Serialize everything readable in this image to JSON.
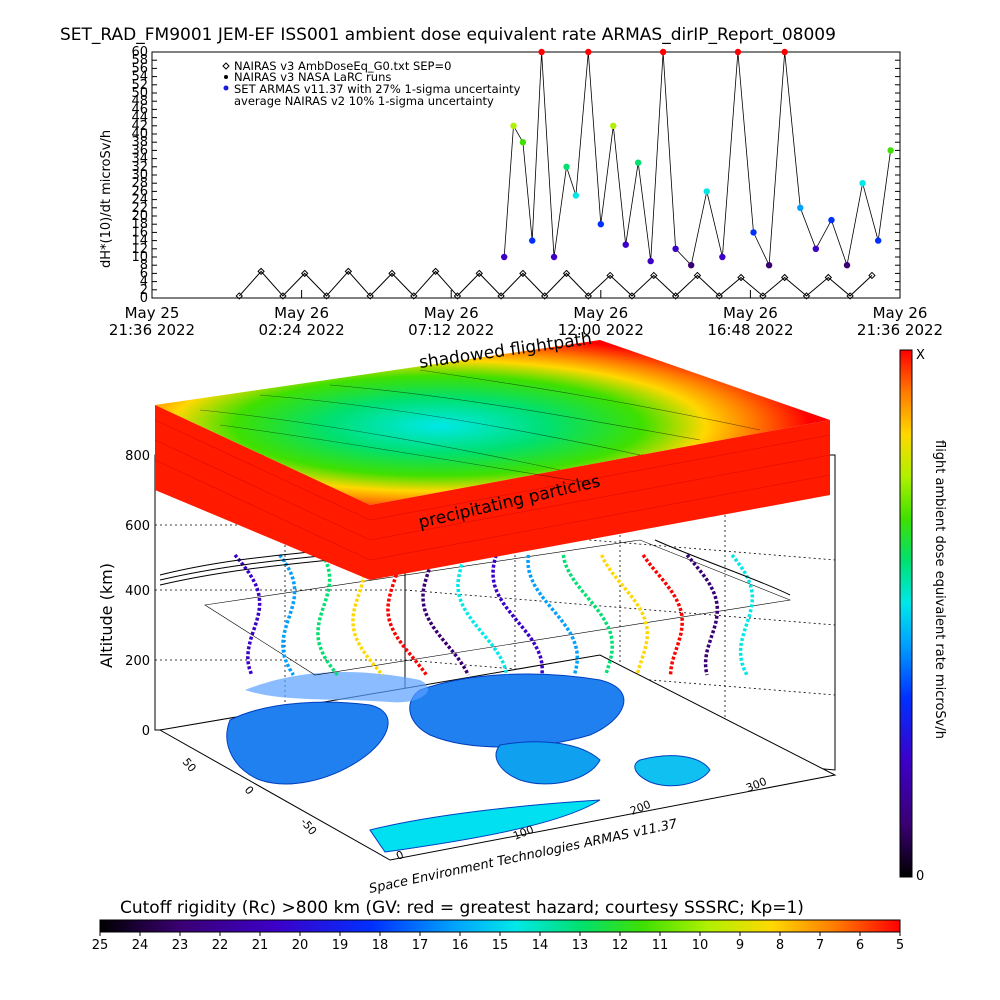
{
  "title": "SET_RAD_FM9001  JEM-EF ISS001 ambient dose equivalent rate ARMAS_dirIP_Report_08009",
  "chart_data": [
    {
      "type": "scatter",
      "ylabel": "dH*(10)/dt microSv/h",
      "ylim": [
        0,
        60
      ],
      "yticks": [
        0,
        2,
        4,
        6,
        8,
        10,
        12,
        14,
        16,
        18,
        20,
        22,
        24,
        26,
        28,
        30,
        32,
        34,
        36,
        38,
        40,
        42,
        44,
        46,
        48,
        50,
        52,
        54,
        56,
        58,
        60
      ],
      "xticks": [
        {
          "line1": "May 25",
          "line2": "21:36 2022"
        },
        {
          "line1": "May 26",
          "line2": "02:24 2022"
        },
        {
          "line1": "May 26",
          "line2": "07:12 2022"
        },
        {
          "line1": "May 26",
          "line2": "12:00 2022"
        },
        {
          "line1": "May 26",
          "line2": "16:48 2022"
        },
        {
          "line1": "May 26",
          "line2": "21:36 2022"
        }
      ],
      "legend": [
        {
          "label": "NAIRAS v3 AmbDoseEq_G0.txt SEP=0",
          "symbol": "diamond",
          "color": "#000000"
        },
        {
          "label": "NAIRAS v3 NASA LaRC runs",
          "symbol": "dot",
          "color": "#000000"
        },
        {
          "label": "SET ARMAS v11.37 with 27% 1-sigma uncertainty",
          "symbol": "dot",
          "color": "#1a1adc"
        },
        {
          "label": "average NAIRAS v2 10% 1-sigma uncertainty",
          "symbol": "none",
          "color": "#000000"
        }
      ],
      "series": [
        {
          "name": "NAIRAS v3 AmbDoseEq_G0.txt SEP=0",
          "x_hours": [
            2.8,
            3.5,
            4.2,
            4.9,
            5.6,
            6.3,
            7.0,
            7.7,
            8.4,
            9.1,
            9.8,
            10.5,
            11.2,
            11.9,
            12.6,
            13.3,
            14.0,
            14.7,
            15.4,
            16.1,
            16.8,
            17.5,
            18.2,
            18.9,
            19.6,
            20.3,
            21.0,
            21.7,
            22.4,
            23.1
          ],
          "values": [
            0.5,
            6.5,
            0.5,
            6,
            0.5,
            6.5,
            0.5,
            6,
            0.5,
            6.5,
            0.5,
            6,
            0.5,
            6,
            0.5,
            6,
            0.5,
            5.5,
            0.5,
            5.5,
            0.5,
            5.5,
            0.5,
            5,
            0.5,
            5,
            0.5,
            5,
            0.5,
            5.5
          ]
        },
        {
          "name": "SET ARMAS v11.37 with 27% 1-sigma uncertainty",
          "x_hours": [
            11.3,
            11.6,
            11.9,
            12.2,
            12.5,
            12.9,
            13.3,
            13.6,
            14.0,
            14.4,
            14.8,
            15.2,
            15.6,
            16.0,
            16.4,
            16.8,
            17.3,
            17.8,
            18.3,
            18.8,
            19.3,
            19.8,
            20.3,
            20.8,
            21.3,
            21.8,
            22.3,
            22.8,
            23.3,
            23.7
          ],
          "values": [
            10,
            42,
            38,
            14,
            60,
            10,
            32,
            25,
            60,
            18,
            42,
            13,
            33,
            9,
            60,
            12,
            8,
            26,
            10,
            60,
            16,
            8,
            60,
            22,
            12,
            19,
            8,
            28,
            14,
            36
          ]
        }
      ]
    },
    {
      "type": "heatmap",
      "zlabel": "Altitude (km)",
      "zticks": [
        "0",
        "200",
        "400",
        "600",
        "800"
      ],
      "lat_ticks": [
        "50",
        "0",
        "-50"
      ],
      "lon_ticks": [
        "0",
        "100",
        "200",
        "300"
      ],
      "annotations": [
        "shadowed flightpath",
        "precipitating particles"
      ],
      "colorbar": {
        "label": "flight ambient dose equivalent rate microSv/h",
        "top": "X",
        "bottom": "0"
      }
    },
    {
      "type": "heatmap",
      "title": "Cutoff rigidity (Rc) >800 km (GV: red = greatest hazard; courtesy SSSRC; Kp=1)",
      "colorbar_ticks": [
        "25",
        "24",
        "23",
        "22",
        "21",
        "20",
        "19",
        "18",
        "17",
        "16",
        "15",
        "14",
        "13",
        "12",
        "11",
        "10",
        "9",
        "8",
        "7",
        "6",
        "5"
      ]
    }
  ],
  "credit": "Space Environment Technologies ARMAS v11.37",
  "colors": {
    "rainbow": [
      "#000000",
      "#3a0073",
      "#3c00c8",
      "#0030ff",
      "#00a0ff",
      "#00e8e8",
      "#00e070",
      "#40e000",
      "#b0f000",
      "#ffd800",
      "#ff7a00",
      "#ff0000"
    ]
  }
}
